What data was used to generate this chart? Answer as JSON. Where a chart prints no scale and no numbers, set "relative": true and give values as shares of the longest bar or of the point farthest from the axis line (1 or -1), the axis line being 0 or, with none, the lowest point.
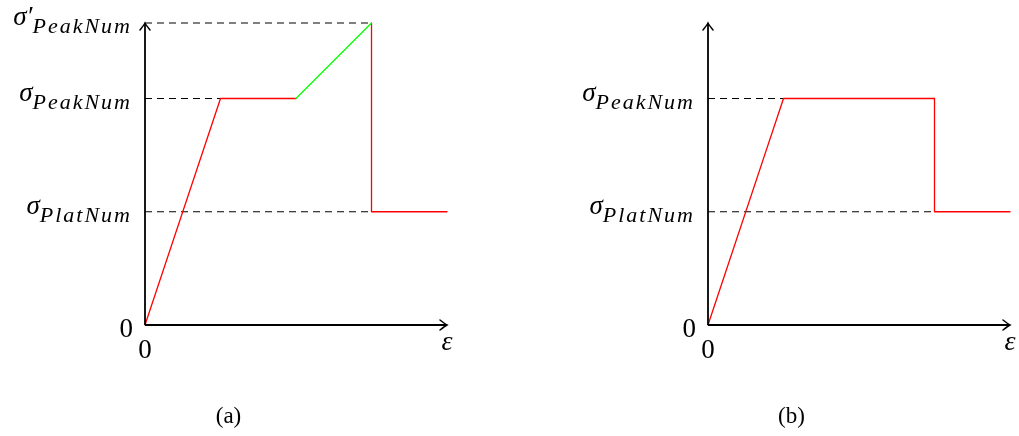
{
  "chart_data": [
    {
      "type": "line",
      "relative": true,
      "title": "(a)",
      "xlabel": "ε",
      "categories": [
        null,
        null,
        null,
        null,
        null
      ],
      "annotations": [
        "0",
        "0"
      ],
      "ref_lines": [
        {
          "axis": "y",
          "value": 0.375,
          "label": "σ$_{PlatNum}$",
          "line_style": "dashed"
        },
        {
          "axis": "y",
          "value": 0.75,
          "label": "σ$_{PeakNum}$",
          "line_style": "dashed"
        },
        {
          "axis": "y",
          "value": 1,
          "label": "σ′$_{PeakNum}$",
          "line_style": "dashed"
        }
      ],
      "series": [
        {
          "color": "#ff0000",
          "values": [
            0,
            0.75,
            0.75,
            null,
            null
          ]
        },
        {
          "type": "step",
          "color": "#ff0000",
          "values": [
            null,
            null,
            null,
            1,
            0.375
          ]
        },
        {
          "color": "#00ff00",
          "values": [
            null,
            null,
            0.75,
            1,
            null
          ]
        }
      ]
    },
    {
      "type": "line",
      "relative": true,
      "title": "(b)",
      "xlabel": "ε",
      "categories": [
        null,
        null,
        null,
        null,
        null
      ],
      "annotations": [
        "0",
        "0"
      ],
      "ref_lines": [
        {
          "axis": "y",
          "value": 0.5,
          "label": "σ$_{PlatNum}$",
          "line_style": "dashed"
        },
        {
          "axis": "y",
          "value": 1,
          "label": "σ$_{PeakNum}$",
          "line_style": "dashed"
        }
      ],
      "series": [
        {
          "color": "#ff0000",
          "values": [
            0,
            1,
            1,
            1,
            null
          ]
        },
        {
          "type": "step",
          "color": "#ff0000",
          "values": [
            null,
            null,
            null,
            1,
            0.5
          ]
        }
      ]
    }
  ]
}
